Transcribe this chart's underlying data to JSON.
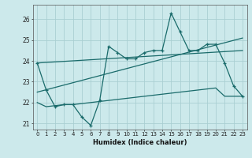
{
  "xlabel": "Humidex (Indice chaleur)",
  "bg_color": "#cce9eb",
  "grid_color": "#aacfd2",
  "line_color": "#1a6b6b",
  "xlim": [
    -0.5,
    23.5
  ],
  "ylim": [
    20.7,
    26.7
  ],
  "yticks": [
    21,
    22,
    23,
    24,
    25,
    26
  ],
  "xticks": [
    0,
    1,
    2,
    3,
    4,
    5,
    6,
    7,
    8,
    9,
    10,
    11,
    12,
    13,
    14,
    15,
    16,
    17,
    18,
    19,
    20,
    21,
    22,
    23
  ],
  "series1_x": [
    0,
    1,
    2,
    3,
    4,
    5,
    6,
    7,
    8,
    9,
    10,
    11,
    12,
    13,
    14,
    15,
    16,
    17,
    18,
    19,
    20,
    21,
    22,
    23
  ],
  "series1_y": [
    23.9,
    22.6,
    21.8,
    21.9,
    21.9,
    21.3,
    20.9,
    22.1,
    24.7,
    24.4,
    24.1,
    24.1,
    24.4,
    24.5,
    24.5,
    26.3,
    25.4,
    24.5,
    24.5,
    24.8,
    24.8,
    23.9,
    22.8,
    22.3
  ],
  "series2_x": [
    0,
    1,
    2,
    3,
    4,
    5,
    6,
    7,
    8,
    9,
    10,
    11,
    12,
    13,
    14,
    15,
    16,
    17,
    18,
    19,
    20,
    21,
    22,
    23
  ],
  "series2_y": [
    22.0,
    21.8,
    21.85,
    21.9,
    21.9,
    21.95,
    22.0,
    22.05,
    22.1,
    22.15,
    22.2,
    22.25,
    22.3,
    22.35,
    22.4,
    22.45,
    22.5,
    22.55,
    22.6,
    22.65,
    22.7,
    22.3,
    22.3,
    22.3
  ],
  "trend1_x": [
    0,
    23
  ],
  "trend1_y": [
    22.5,
    25.1
  ],
  "trend2_x": [
    0,
    23
  ],
  "trend2_y": [
    23.9,
    24.5
  ]
}
